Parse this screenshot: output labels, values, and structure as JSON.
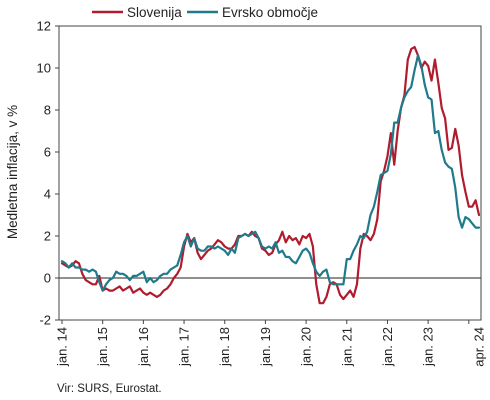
{
  "chart_data": {
    "type": "line",
    "title": "",
    "xlabel": "",
    "ylabel": "Medletna inflacija, v %",
    "ylim": [
      -2,
      12
    ],
    "yticks": [
      "-2",
      "0",
      "2",
      "4",
      "6",
      "8",
      "10",
      "12"
    ],
    "x_start": "2014-01",
    "x_end": "2024-04",
    "x_tick_labels": [
      "jan. 14",
      "jan. 15",
      "jan. 16",
      "jan. 17",
      "jan. 18",
      "jan. 19",
      "jan. 20",
      "jan. 21",
      "jan. 22",
      "jan. 23",
      "apr. 24"
    ],
    "legend_position": "top",
    "grid": false,
    "source_note": "Vir: SURS, Eurostat.",
    "series": [
      {
        "name": "Slovenija",
        "color": "#b01c2e",
        "values": [
          0.7,
          0.6,
          0.5,
          0.6,
          0.8,
          0.7,
          0.2,
          -0.1,
          -0.2,
          -0.3,
          -0.3,
          0.1,
          -0.6,
          -0.5,
          -0.6,
          -0.6,
          -0.5,
          -0.4,
          -0.6,
          -0.5,
          -0.4,
          -0.7,
          -0.6,
          -0.5,
          -0.7,
          -0.8,
          -0.7,
          -0.8,
          -0.9,
          -0.8,
          -0.6,
          -0.5,
          -0.3,
          0.0,
          0.2,
          0.5,
          1.5,
          2.1,
          1.7,
          1.9,
          1.2,
          0.9,
          1.1,
          1.3,
          1.4,
          1.6,
          1.8,
          1.7,
          1.5,
          1.4,
          1.4,
          1.6,
          2.0,
          2.0,
          2.1,
          2.0,
          2.2,
          2.0,
          1.9,
          1.4,
          1.3,
          1.1,
          1.2,
          1.6,
          1.8,
          2.2,
          1.7,
          2.0,
          1.8,
          1.9,
          1.6,
          2.0,
          1.9,
          2.1,
          1.5,
          -0.3,
          -1.2,
          -1.2,
          -0.9,
          -0.3,
          -0.2,
          -0.3,
          -0.8,
          -1.0,
          -0.8,
          -0.6,
          -0.9,
          -0.3,
          1.4,
          2.1,
          2.0,
          1.8,
          2.1,
          2.8,
          4.6,
          5.1,
          5.8,
          6.9,
          5.4,
          7.0,
          8.1,
          8.7,
          10.4,
          10.9,
          11.0,
          10.6,
          10.0,
          10.3,
          10.1,
          9.4,
          10.4,
          9.3,
          8.1,
          7.6,
          6.1,
          6.2,
          7.1,
          6.3,
          4.9,
          4.1,
          3.4,
          3.4,
          3.7,
          3.0
        ]
      },
      {
        "name": "Evrsko območje",
        "color": "#1f7a8c",
        "values": [
          0.8,
          0.7,
          0.5,
          0.7,
          0.5,
          0.5,
          0.4,
          0.4,
          0.3,
          0.4,
          0.3,
          -0.2,
          -0.6,
          -0.3,
          -0.1,
          0.0,
          0.3,
          0.2,
          0.2,
          0.1,
          -0.1,
          0.1,
          0.1,
          0.2,
          0.3,
          -0.2,
          0.0,
          -0.2,
          -0.1,
          0.1,
          0.2,
          0.2,
          0.4,
          0.5,
          0.6,
          1.1,
          1.7,
          2.0,
          1.5,
          1.9,
          1.4,
          1.3,
          1.3,
          1.5,
          1.5,
          1.4,
          1.5,
          1.4,
          1.3,
          1.1,
          1.4,
          1.2,
          1.9,
          2.0,
          2.1,
          2.0,
          2.1,
          2.2,
          1.9,
          1.5,
          1.4,
          1.5,
          1.4,
          1.7,
          1.2,
          1.3,
          1.0,
          1.0,
          0.8,
          0.7,
          1.0,
          1.3,
          1.4,
          1.2,
          0.7,
          0.3,
          0.1,
          0.3,
          0.4,
          -0.2,
          -0.3,
          -0.3,
          -0.3,
          -0.3,
          0.9,
          0.9,
          1.3,
          1.6,
          2.0,
          1.9,
          2.2,
          3.0,
          3.4,
          4.1,
          4.9,
          5.0,
          5.1,
          5.9,
          7.4,
          7.4,
          8.1,
          8.6,
          8.9,
          9.1,
          9.9,
          10.6,
          10.1,
          9.2,
          8.6,
          8.5,
          6.9,
          7.0,
          6.1,
          5.5,
          5.3,
          5.2,
          4.3,
          2.9,
          2.4,
          2.9,
          2.8,
          2.6,
          2.4,
          2.4
        ]
      }
    ]
  }
}
